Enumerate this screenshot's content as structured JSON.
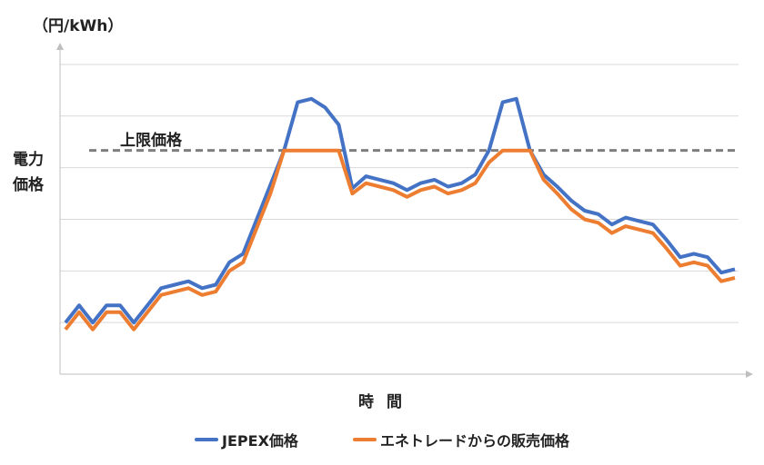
{
  "chart_data": {
    "type": "line",
    "title": "",
    "xlabel": "時 間",
    "ylabel": "電力価格",
    "unit_label": "（円/kWh）",
    "x_ticks_shown": false,
    "y_ticks_shown": false,
    "grid": "horizontal",
    "legend_position": "bottom",
    "reference_line": {
      "label": "上限価格",
      "value": 13,
      "color": "#7f7f7f",
      "style": "dashed"
    },
    "ylim": [
      0,
      19
    ],
    "n_points": 50,
    "series": [
      {
        "name": "JEPEX価格",
        "color": "#4472c4",
        "values": [
          3,
          4,
          3,
          4,
          4,
          3,
          4,
          5,
          5.2,
          5.4,
          5,
          5.2,
          6.5,
          7,
          9,
          11,
          13,
          15.8,
          16,
          15.5,
          14.5,
          10.8,
          11.5,
          11.3,
          11.1,
          10.7,
          11.1,
          11.3,
          10.9,
          11.1,
          11.6,
          13,
          15.8,
          16,
          13,
          11.6,
          10.9,
          10.1,
          9.5,
          9.3,
          8.7,
          9.1,
          8.9,
          8.7,
          7.8,
          6.8,
          7,
          6.8,
          5.9,
          6.1
        ]
      },
      {
        "name": "エネトレードからの販売価格",
        "color": "#ed7d31",
        "values": [
          2.6,
          3.6,
          2.6,
          3.6,
          3.6,
          2.6,
          3.6,
          4.6,
          4.8,
          5,
          4.6,
          4.8,
          6,
          6.5,
          8.5,
          10.5,
          13,
          13,
          13,
          13,
          13,
          10.5,
          11.1,
          10.9,
          10.7,
          10.3,
          10.7,
          10.9,
          10.5,
          10.7,
          11.1,
          12.3,
          13,
          13,
          13,
          11.3,
          10.5,
          9.6,
          9,
          8.8,
          8.2,
          8.6,
          8.4,
          8.2,
          7.3,
          6.3,
          6.5,
          6.3,
          5.4,
          5.6
        ]
      }
    ]
  }
}
